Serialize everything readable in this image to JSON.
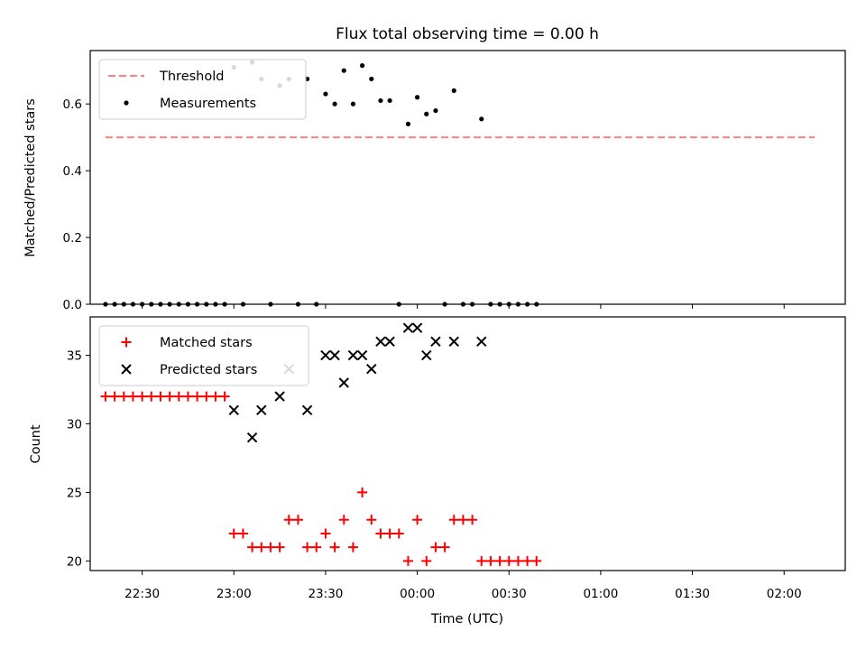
{
  "figure": {
    "title": "Flux total observing time = 0.00 h"
  },
  "chart_data": [
    {
      "type": "scatter",
      "panel": "top",
      "ylabel": "Matched/Predicted stars",
      "xlim": [
        "22:13",
        "02:20"
      ],
      "ylim": [
        0,
        0.76
      ],
      "yticks": [
        0.0,
        0.2,
        0.4,
        0.6
      ],
      "ytick_labels": [
        "0.0",
        "0.2",
        "0.4",
        "0.6"
      ],
      "xticks": [
        "22:30",
        "23:00",
        "23:30",
        "00:00",
        "00:30",
        "01:00",
        "01:30",
        "02:00"
      ],
      "legend_position": "top-left",
      "threshold": {
        "name": "Threshold",
        "value": 0.5,
        "x_start": "22:18",
        "x_end": "02:10",
        "color": "#ff7f7f",
        "style": "dashed"
      },
      "series": [
        {
          "name": "Measurements",
          "marker": "dot",
          "color": "#000000",
          "points": [
            [
              "22:18",
              0
            ],
            [
              "22:21",
              0
            ],
            [
              "22:24",
              0
            ],
            [
              "22:27",
              0
            ],
            [
              "22:30",
              0
            ],
            [
              "22:33",
              0
            ],
            [
              "22:36",
              0
            ],
            [
              "22:39",
              0
            ],
            [
              "22:42",
              0
            ],
            [
              "22:45",
              0
            ],
            [
              "22:48",
              0
            ],
            [
              "22:51",
              0
            ],
            [
              "22:54",
              0
            ],
            [
              "22:57",
              0
            ],
            [
              "23:00",
              0.71
            ],
            [
              "23:03",
              0
            ],
            [
              "23:06",
              0.725
            ],
            [
              "23:09",
              0.675
            ],
            [
              "23:12",
              0
            ],
            [
              "23:15",
              0.655
            ],
            [
              "23:18",
              0.675
            ],
            [
              "23:21",
              0
            ],
            [
              "23:24",
              0.675
            ],
            [
              "23:27",
              0
            ],
            [
              "23:30",
              0.63
            ],
            [
              "23:33",
              0.6
            ],
            [
              "23:36",
              0.7
            ],
            [
              "23:39",
              0.6
            ],
            [
              "23:42",
              0.715
            ],
            [
              "23:45",
              0.675
            ],
            [
              "23:48",
              0.61
            ],
            [
              "23:51",
              0.61
            ],
            [
              "23:54",
              0
            ],
            [
              "23:57",
              0.54
            ],
            [
              "00:00",
              0.62
            ],
            [
              "00:03",
              0.57
            ],
            [
              "00:06",
              0.58
            ],
            [
              "00:09",
              0
            ],
            [
              "00:12",
              0.64
            ],
            [
              "00:15",
              0
            ],
            [
              "00:18",
              0
            ],
            [
              "00:21",
              0.555
            ],
            [
              "00:24",
              0
            ],
            [
              "00:27",
              0
            ],
            [
              "00:30",
              0
            ],
            [
              "00:33",
              0
            ],
            [
              "00:36",
              0
            ],
            [
              "00:39",
              0
            ]
          ]
        }
      ]
    },
    {
      "type": "scatter",
      "panel": "bottom",
      "xlabel": "Time (UTC)",
      "ylabel": "Count",
      "xlim": [
        "22:13",
        "02:20"
      ],
      "ylim": [
        19.3,
        37.8
      ],
      "yticks": [
        20,
        25,
        30,
        35
      ],
      "ytick_labels": [
        "20",
        "25",
        "30",
        "35"
      ],
      "xticks": [
        "22:30",
        "23:00",
        "23:30",
        "00:00",
        "00:30",
        "01:00",
        "01:30",
        "02:00"
      ],
      "xtick_labels": [
        "22:30",
        "23:00",
        "23:30",
        "00:00",
        "00:30",
        "01:00",
        "01:30",
        "02:00"
      ],
      "legend_position": "top-left",
      "series": [
        {
          "name": "Matched stars",
          "marker": "plus",
          "color": "#ff0000",
          "points": [
            [
              "22:18",
              32
            ],
            [
              "22:21",
              32
            ],
            [
              "22:24",
              32
            ],
            [
              "22:27",
              32
            ],
            [
              "22:30",
              32
            ],
            [
              "22:33",
              32
            ],
            [
              "22:36",
              32
            ],
            [
              "22:39",
              32
            ],
            [
              "22:42",
              32
            ],
            [
              "22:45",
              32
            ],
            [
              "22:48",
              32
            ],
            [
              "22:51",
              32
            ],
            [
              "22:54",
              32
            ],
            [
              "22:57",
              32
            ],
            [
              "23:00",
              22
            ],
            [
              "23:03",
              22
            ],
            [
              "23:06",
              21
            ],
            [
              "23:09",
              21
            ],
            [
              "23:12",
              21
            ],
            [
              "23:15",
              21
            ],
            [
              "23:18",
              23
            ],
            [
              "23:21",
              23
            ],
            [
              "23:24",
              21
            ],
            [
              "23:27",
              21
            ],
            [
              "23:30",
              22
            ],
            [
              "23:33",
              21
            ],
            [
              "23:36",
              23
            ],
            [
              "23:39",
              21
            ],
            [
              "23:42",
              25
            ],
            [
              "23:45",
              23
            ],
            [
              "23:48",
              22
            ],
            [
              "23:51",
              22
            ],
            [
              "23:54",
              22
            ],
            [
              "23:57",
              20
            ],
            [
              "00:00",
              23
            ],
            [
              "00:03",
              20
            ],
            [
              "00:06",
              21
            ],
            [
              "00:09",
              21
            ],
            [
              "00:12",
              23
            ],
            [
              "00:15",
              23
            ],
            [
              "00:18",
              23
            ],
            [
              "00:21",
              20
            ],
            [
              "00:24",
              20
            ],
            [
              "00:27",
              20
            ],
            [
              "00:30",
              20
            ],
            [
              "00:33",
              20
            ],
            [
              "00:36",
              20
            ],
            [
              "00:39",
              20
            ]
          ]
        },
        {
          "name": "Predicted stars",
          "marker": "x",
          "color": "#000000",
          "points": [
            [
              "23:00",
              31
            ],
            [
              "23:06",
              29
            ],
            [
              "23:09",
              31
            ],
            [
              "23:15",
              32
            ],
            [
              "23:18",
              34
            ],
            [
              "23:24",
              31
            ],
            [
              "23:30",
              35
            ],
            [
              "23:33",
              35
            ],
            [
              "23:36",
              33
            ],
            [
              "23:39",
              35
            ],
            [
              "23:42",
              35
            ],
            [
              "23:45",
              34
            ],
            [
              "23:48",
              36
            ],
            [
              "23:51",
              36
            ],
            [
              "23:57",
              37
            ],
            [
              "00:00",
              37
            ],
            [
              "00:03",
              35
            ],
            [
              "00:06",
              36
            ],
            [
              "00:12",
              36
            ],
            [
              "00:21",
              36
            ]
          ]
        }
      ]
    }
  ]
}
